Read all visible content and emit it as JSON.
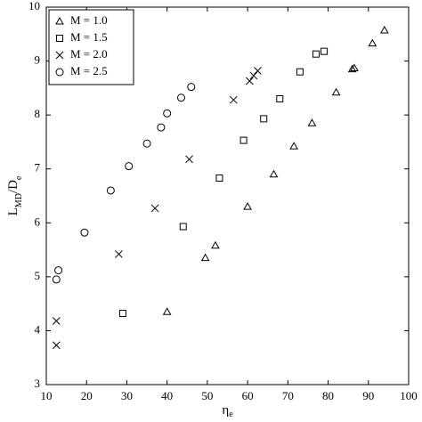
{
  "chart_data": {
    "type": "scatter",
    "x_label": [
      "η",
      "e"
    ],
    "y_label": [
      "L",
      "MD",
      "/D",
      "e"
    ],
    "xlim": [
      10,
      100
    ],
    "ylim": [
      3,
      10
    ],
    "xticks": [
      10,
      20,
      30,
      40,
      50,
      60,
      70,
      80,
      90,
      100
    ],
    "yticks": [
      3,
      4,
      5,
      6,
      7,
      8,
      9,
      10
    ],
    "legend": "upper left",
    "series": [
      {
        "name": "M = 1.0",
        "marker": "triangle",
        "color": "#000000",
        "x": [
          40,
          49.5,
          52,
          60,
          66.5,
          71.5,
          76,
          82,
          86,
          86.5,
          91,
          94
        ],
        "values": [
          4.35,
          5.35,
          5.58,
          6.3,
          6.9,
          7.42,
          7.85,
          8.42,
          8.85,
          8.87,
          9.33,
          9.57
        ]
      },
      {
        "name": "M = 1.5",
        "marker": "square",
        "color": "#000000",
        "x": [
          29,
          44,
          53,
          59,
          64,
          68,
          73,
          77,
          79
        ],
        "values": [
          4.32,
          5.93,
          6.83,
          7.53,
          7.93,
          8.3,
          8.8,
          9.13,
          9.18
        ]
      },
      {
        "name": "M = 2.0",
        "marker": "cross",
        "color": "#000000",
        "x": [
          12.5,
          12.5,
          28,
          37,
          45.5,
          56.5,
          60.5,
          61.5,
          62.5
        ],
        "values": [
          3.73,
          4.18,
          5.42,
          6.27,
          7.18,
          8.28,
          8.63,
          8.73,
          8.82
        ]
      },
      {
        "name": "M = 2.5",
        "marker": "circle",
        "color": "#000000",
        "x": [
          12.5,
          13,
          19.5,
          26,
          30.5,
          35,
          38.5,
          40,
          43.5,
          46
        ],
        "values": [
          4.95,
          5.12,
          5.82,
          6.6,
          7.05,
          7.47,
          7.77,
          8.03,
          8.32,
          8.52
        ]
      }
    ]
  }
}
